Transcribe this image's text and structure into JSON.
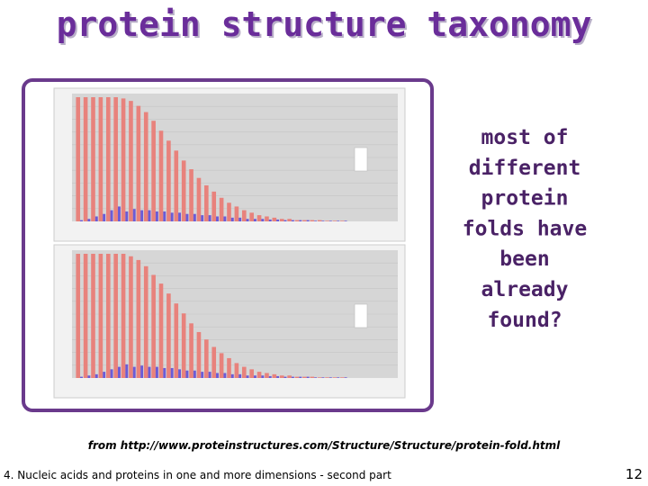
{
  "title": "protein structure taxonomy",
  "figure": {
    "panels": [
      {
        "type": "bar",
        "series": [
          {
            "color": "#e8827c",
            "values": [
              100,
              100,
              100,
              100,
              100,
              100,
              99,
              97,
              93,
              88,
              81,
              73,
              65,
              57,
              49,
              42,
              35,
              29,
              24,
              19,
              15,
              12,
              9,
              7,
              5,
              4,
              3,
              2,
              2,
              1,
              1,
              1,
              1,
              0.5,
              0.5,
              0.5
            ]
          },
          {
            "color": "#6b5bd6",
            "values": [
              1,
              2,
              4,
              6,
              9,
              12,
              8,
              10,
              9,
              9,
              8,
              8,
              7,
              7,
              6,
              6,
              5,
              5,
              4,
              4,
              3,
              3,
              2,
              2,
              2,
              1.5,
              1.5,
              1,
              1,
              1,
              1,
              0.5,
              0.5,
              0.5,
              0.5,
              0.5
            ]
          }
        ]
      },
      {
        "type": "bar",
        "series": [
          {
            "color": "#e8827c",
            "values": [
              100,
              100,
              100,
              100,
              100,
              100,
              100,
              98,
              95,
              90,
              83,
              76,
              68,
              60,
              52,
              44,
              37,
              31,
              25,
              20,
              16,
              12,
              9,
              7,
              5,
              4,
              3,
              2,
              2,
              1,
              1,
              1,
              0.5,
              0.5,
              0.5,
              0.5
            ]
          },
          {
            "color": "#6b5bd6",
            "values": [
              1,
              2,
              3,
              5,
              7,
              9,
              11,
              9,
              10,
              9,
              9,
              8,
              8,
              7,
              6,
              6,
              5,
              5,
              4,
              4,
              3,
              3,
              2,
              2,
              2,
              1.5,
              1.5,
              1,
              1,
              1,
              1,
              0.5,
              0.5,
              0.5,
              0.5,
              0.5
            ]
          }
        ]
      }
    ]
  },
  "note_lines": [
    "most of",
    "different",
    "protein",
    "folds have",
    "been",
    "already",
    "found?"
  ],
  "source": "from http://www.proteinstructures.com/Structure/Structure/protein-fold.html",
  "footer": "4. Nucleic acids and proteins in one and more dimensions - second part",
  "page_number": 12
}
